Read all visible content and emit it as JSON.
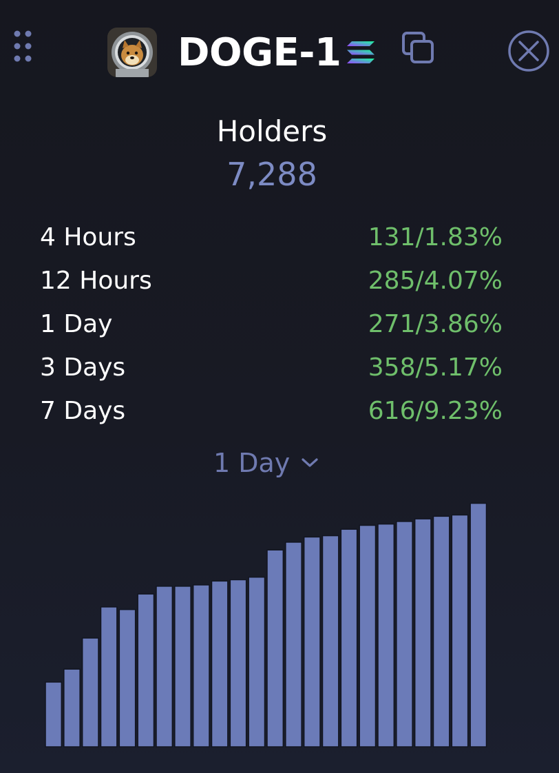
{
  "header": {
    "token_symbol": "DOGE-1",
    "chain": "solana",
    "icons": {
      "drag": "drag-handle-icon",
      "logo": "doge-astronaut-logo",
      "chain": "solana-icon",
      "copy": "copy-icon",
      "close": "close-icon"
    }
  },
  "holders": {
    "title": "Holders",
    "count": "7,288"
  },
  "stats": [
    {
      "label": "4 Hours",
      "value": "131/1.83%"
    },
    {
      "label": "12 Hours",
      "value": "285/4.07%"
    },
    {
      "label": "1 Day",
      "value": "271/3.86%"
    },
    {
      "label": "3 Days",
      "value": "358/5.17%"
    },
    {
      "label": "7 Days",
      "value": "616/9.23%"
    }
  ],
  "range_selector": {
    "selected": "1 Day"
  },
  "colors": {
    "background": "#16171f",
    "accent": "#7d8bc4",
    "bar": "#6b7bb8",
    "positive": "#6fbf6b",
    "text": "#ffffff"
  },
  "chart_data": {
    "type": "bar",
    "title": "",
    "xlabel": "",
    "ylabel": "",
    "grid": false,
    "values": [
      0.25,
      0.3,
      0.42,
      0.54,
      0.53,
      0.59,
      0.62,
      0.62,
      0.625,
      0.64,
      0.645,
      0.655,
      0.76,
      0.79,
      0.81,
      0.815,
      0.84,
      0.855,
      0.86,
      0.87,
      0.88,
      0.89,
      0.895,
      0.94
    ],
    "ylim": [
      0,
      1
    ]
  }
}
